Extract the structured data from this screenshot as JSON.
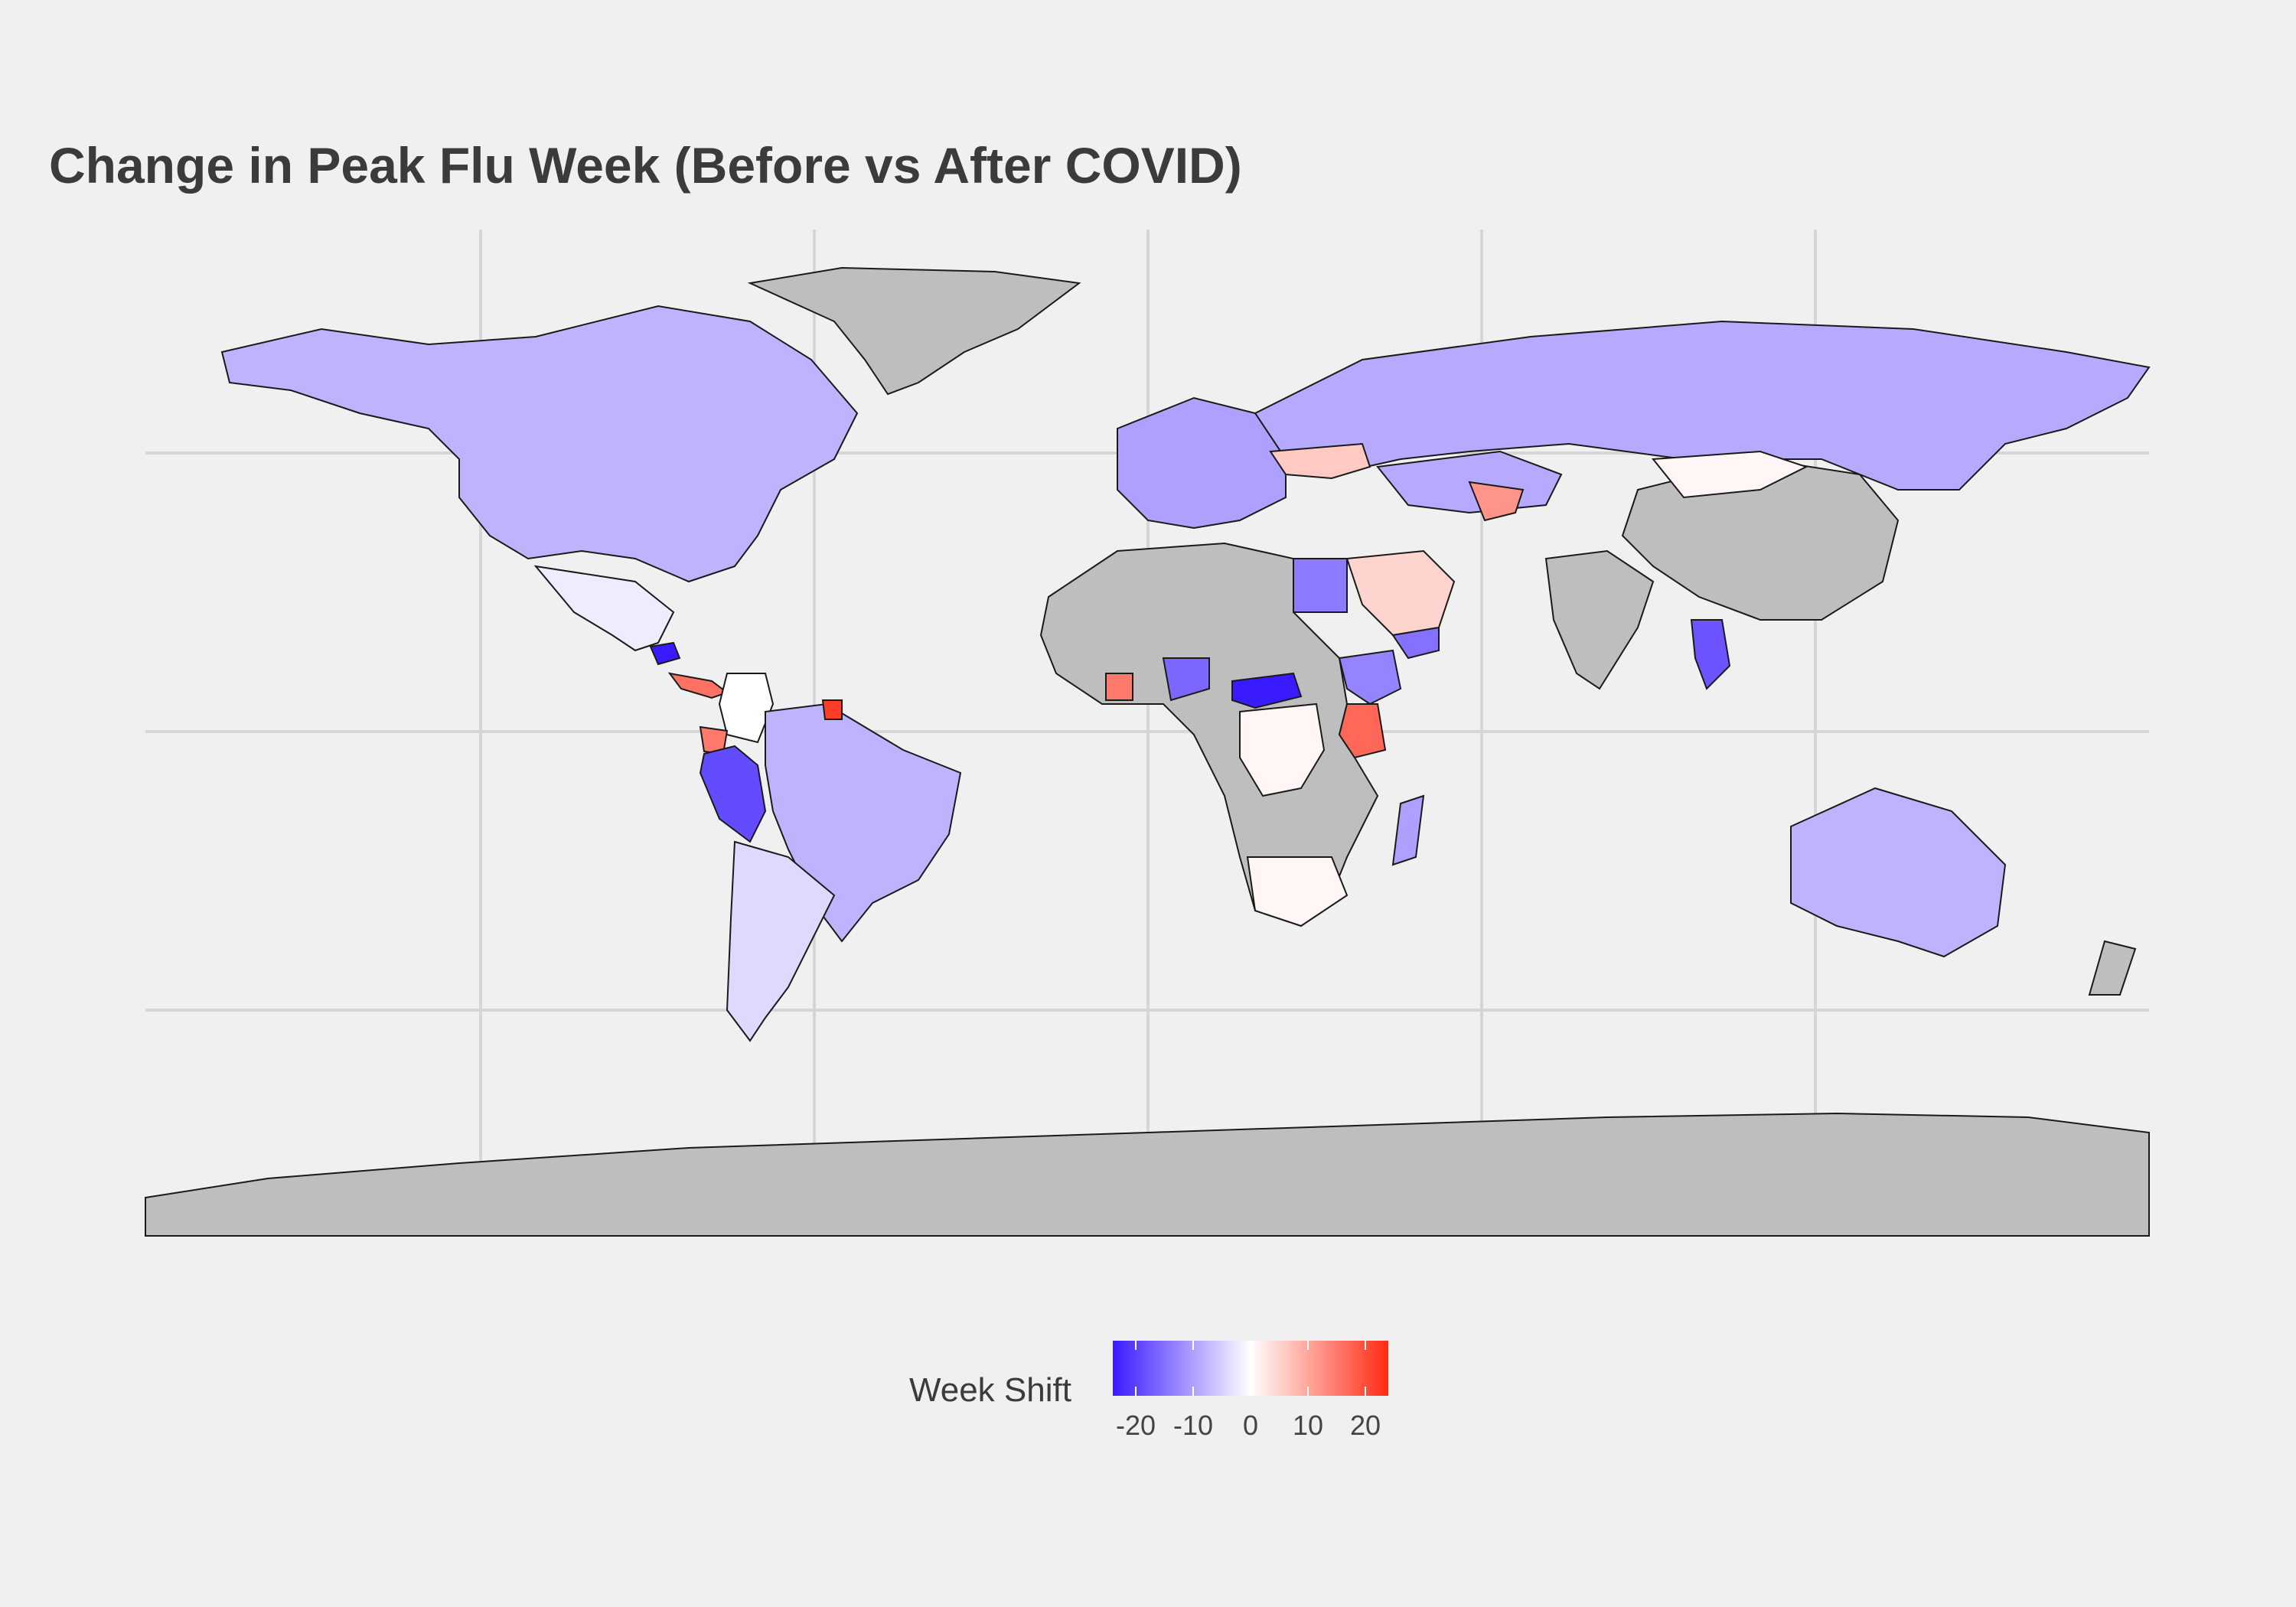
{
  "chart_data": {
    "type": "choropleth",
    "title": "Change in Peak Flu Week (Before vs After COVID)",
    "legend": {
      "title": "Week Shift",
      "range": [
        -24,
        24
      ],
      "ticks": [
        "-20",
        "-10",
        "0",
        "10",
        "20"
      ],
      "tick_values": [
        -20,
        -10,
        0,
        10,
        20
      ],
      "colors": {
        "low": "#3a1bff",
        "mid": "#ffffff",
        "high": "#ff2a14",
        "na": "#bebebe"
      },
      "placement": "bottom"
    },
    "grid": true,
    "regions": [
      {
        "name": "Canada / USA",
        "value": -8
      },
      {
        "name": "Greenland",
        "value": null
      },
      {
        "name": "Mexico",
        "value": -2
      },
      {
        "name": "Honduras",
        "value": -24
      },
      {
        "name": "Costa Rica / Panama",
        "value": 16
      },
      {
        "name": "Colombia",
        "value": 0
      },
      {
        "name": "Ecuador",
        "value": 15
      },
      {
        "name": "Peru",
        "value": -19
      },
      {
        "name": "Brazil",
        "value": -8
      },
      {
        "name": "Argentina / Chile",
        "value": -4
      },
      {
        "name": "Suriname",
        "value": 22
      },
      {
        "name": "Russia",
        "value": -9
      },
      {
        "name": "Europe",
        "value": -10
      },
      {
        "name": "Ukraine",
        "value": 6
      },
      {
        "name": "China",
        "value": null
      },
      {
        "name": "Mongolia",
        "value": 1
      },
      {
        "name": "India",
        "value": null
      },
      {
        "name": "Kazakhstan",
        "value": -9
      },
      {
        "name": "Uzbekistan",
        "value": 12
      },
      {
        "name": "Saudi Arabia",
        "value": 5
      },
      {
        "name": "Egypt",
        "value": -14
      },
      {
        "name": "Yemen",
        "value": -15
      },
      {
        "name": "Ethiopia",
        "value": -13
      },
      {
        "name": "Kenya",
        "value": 17
      },
      {
        "name": "Nigeria",
        "value": -16
      },
      {
        "name": "Central African Republic",
        "value": -24
      },
      {
        "name": "DR Congo",
        "value": 1
      },
      {
        "name": "South Africa",
        "value": 1
      },
      {
        "name": "Ghana",
        "value": 15
      },
      {
        "name": "Thailand",
        "value": -18
      },
      {
        "name": "Australia",
        "value": -8
      },
      {
        "name": "New Zealand",
        "value": null
      },
      {
        "name": "Madagascar",
        "value": -10
      },
      {
        "name": "Antarctica",
        "value": null
      },
      {
        "name": "Africa (other)",
        "value": null
      }
    ]
  }
}
